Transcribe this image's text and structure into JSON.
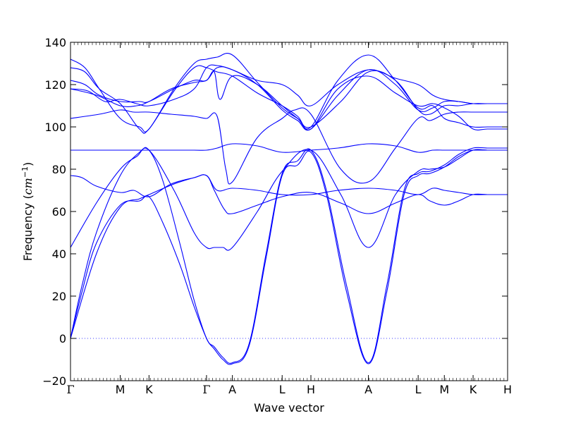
{
  "chart_data": {
    "type": "line",
    "title": "",
    "xlabel": "Wave vector",
    "ylabel": "Frequency ($cm^{-1}$)",
    "ylabel_parts": {
      "prefix": "Frequency (",
      "unit_base": "cm",
      "unit_exp": "−1",
      "suffix": ")"
    },
    "ylim": [
      -20,
      140
    ],
    "yticks": [
      -20,
      0,
      20,
      40,
      60,
      80,
      100,
      120,
      140
    ],
    "ytick_labels": [
      "−20",
      "0",
      "20",
      "40",
      "60",
      "80",
      "100",
      "120",
      "140"
    ],
    "xlim": [
      0,
      15.2
    ],
    "xticks": [
      {
        "label": "Γ",
        "x": 0.0
      },
      {
        "label": "M",
        "x": 1.73
      },
      {
        "label": "K",
        "x": 2.73
      },
      {
        "label": "Γ",
        "x": 4.73
      },
      {
        "label": "A",
        "x": 5.63
      },
      {
        "label": "L",
        "x": 7.36
      },
      {
        "label": "H",
        "x": 8.36
      },
      {
        "label": "A",
        "x": 10.36
      },
      {
        "label": "L",
        "x": 12.09
      },
      {
        "label": "M",
        "x": 13.0
      },
      {
        "label": "K",
        "x": 14.0
      },
      {
        "label": "H",
        "x": 15.2
      }
    ],
    "color": "#0000ff",
    "zero_line": {
      "y": 0,
      "style": "dotted"
    },
    "grid": false,
    "series": [
      {
        "x": [
          0,
          0.4,
          0.9,
          1.73,
          2.4,
          2.73,
          3.2,
          3.8,
          4.3,
          4.73,
          5.0,
          5.3,
          5.63,
          6.2,
          6.8,
          7.36,
          7.9,
          8.36,
          8.9,
          9.6,
          10.36,
          11.0,
          11.6,
          12.09,
          12.5,
          13.0,
          13.5,
          14.0,
          14.5,
          15.2
        ],
        "y": [
          0,
          25,
          50,
          77,
          88,
          89,
          75,
          45,
          18,
          0,
          -4,
          -9,
          -11.5,
          -3,
          40,
          78,
          84,
          89,
          70,
          25,
          -11.5,
          25,
          70,
          78,
          79,
          82,
          87,
          90,
          90,
          90
        ]
      },
      {
        "x": [
          0,
          0.4,
          0.9,
          1.73,
          2.4,
          2.73,
          3.2,
          3.8,
          4.3,
          4.73,
          5.0,
          5.3,
          5.63,
          6.2,
          6.8,
          7.36,
          7.9,
          8.36,
          8.9,
          9.6,
          10.36,
          11.0,
          11.6,
          12.09,
          12.5,
          13.0,
          13.5,
          14.0,
          14.5,
          15.2
        ],
        "y": [
          0,
          22,
          45,
          63,
          65,
          67,
          55,
          35,
          15,
          0,
          -5,
          -10,
          -12,
          -4,
          38,
          77,
          82,
          88,
          68,
          22,
          -12,
          22,
          68,
          77,
          78,
          81,
          86,
          89,
          89,
          89
        ]
      },
      {
        "x": [
          0,
          0.9,
          1.73,
          2.4,
          2.73,
          3.6,
          4.3,
          4.73,
          5.0,
          5.35,
          5.63,
          6.5,
          7.36,
          8.36,
          9.4,
          10.36,
          11.3,
          12.09,
          12.5,
          13.0,
          13.5,
          14.0,
          14.5,
          15.2
        ],
        "y": [
          0,
          40,
          62,
          66,
          68,
          73,
          76,
          77,
          70,
          61,
          59,
          63,
          67,
          69,
          64,
          59,
          64,
          68,
          65,
          63,
          65,
          68,
          68,
          68
        ]
      },
      {
        "x": [
          0,
          0.9,
          1.73,
          2.3,
          2.73,
          3.6,
          4.3,
          4.73,
          5.0,
          5.3,
          5.63,
          6.5,
          7.36,
          8.36,
          9.4,
          10.36,
          11.3,
          12.09,
          12.5,
          13.0,
          13.5,
          14.0,
          14.5,
          15.2
        ],
        "y": [
          43,
          64,
          80,
          86,
          89,
          70,
          50,
          43,
          43,
          43,
          43,
          60,
          79,
          89,
          68,
          43,
          68,
          79,
          80,
          81,
          85,
          89,
          89,
          89
        ]
      },
      {
        "x": [
          0,
          0.4,
          0.9,
          1.73,
          2.2,
          2.73,
          3.5,
          4.3,
          4.73,
          5.1,
          5.63,
          6.5,
          7.36,
          8.36,
          9.3,
          10.36,
          11.3,
          12.09,
          12.6,
          13.0,
          13.5,
          14.0,
          14.5,
          15.2
        ],
        "y": [
          77,
          76,
          72,
          69,
          70,
          67,
          73,
          76,
          77,
          70,
          71,
          70,
          68,
          68,
          70,
          71,
          70,
          68,
          71,
          70,
          69,
          68,
          68,
          68
        ]
      },
      {
        "x": [
          0,
          1.0,
          1.73,
          2.3,
          2.73,
          3.5,
          4.3,
          4.73,
          5.1,
          5.63,
          6.5,
          7.36,
          8.36,
          9.3,
          10.36,
          11.3,
          12.09,
          12.6,
          13.0,
          13.5,
          14.0,
          14.5,
          15.2
        ],
        "y": [
          89,
          89,
          89,
          89,
          89,
          89,
          89,
          89,
          90,
          92,
          91,
          88,
          89,
          90,
          92,
          91,
          88,
          89,
          89,
          89,
          89,
          89,
          89
        ]
      },
      {
        "x": [
          0,
          1.0,
          1.73,
          2.2,
          2.73,
          3.5,
          4.3,
          4.73,
          5.1,
          5.4,
          5.63,
          6.5,
          7.36,
          7.8,
          8.36,
          9.4,
          10.36,
          11.3,
          12.09,
          12.5,
          13.0,
          13.5,
          14.0,
          14.5,
          15.2
        ],
        "y": [
          104,
          106,
          108,
          107,
          107,
          106,
          105,
          104,
          105,
          80,
          74,
          95,
          104,
          108,
          106,
          80,
          74,
          90,
          104,
          103,
          106,
          107,
          107,
          107,
          107
        ]
      },
      {
        "x": [
          0,
          0.9,
          1.73,
          2.3,
          2.73,
          3.5,
          4.3,
          4.73,
          5.0,
          5.2,
          5.63,
          6.5,
          7.36,
          7.9,
          8.36,
          9.4,
          10.36,
          11.3,
          12.09,
          12.5,
          13.0,
          13.5,
          14.0,
          14.5,
          15.2
        ],
        "y": [
          118,
          115,
          110,
          110,
          112,
          118,
          121,
          122,
          126,
          113,
          124,
          120,
          110,
          104,
          100,
          112,
          126,
          122,
          108,
          106,
          110,
          110,
          111,
          111,
          111
        ]
      },
      {
        "x": [
          0,
          0.5,
          1.0,
          1.73,
          2.4,
          2.73,
          3.6,
          4.3,
          4.73,
          5.1,
          5.63,
          6.5,
          7.36,
          7.9,
          8.36,
          9.3,
          10.36,
          11.3,
          12.09,
          12.6,
          13.0,
          13.5,
          14.0,
          14.5,
          15.2
        ],
        "y": [
          122,
          120,
          115,
          112,
          112,
          112,
          118,
          122,
          122,
          128,
          127,
          120,
          108,
          103,
          99,
          115,
          127,
          120,
          108,
          109,
          112,
          112,
          111,
          111,
          111
        ]
      },
      {
        "x": [
          0,
          0.5,
          1.0,
          1.73,
          2.4,
          2.73,
          3.6,
          4.3,
          4.73,
          5.1,
          5.63,
          6.5,
          7.36,
          7.9,
          8.36,
          9.3,
          10.36,
          11.3,
          12.09,
          12.6,
          13.0,
          13.5,
          14.0,
          14.5,
          15.2
        ],
        "y": [
          128,
          126,
          118,
          111,
          99,
          99,
          117,
          128,
          128,
          126,
          124,
          116,
          110,
          105,
          99,
          118,
          124,
          116,
          110,
          111,
          109,
          105,
          99,
          99,
          99
        ]
      },
      {
        "x": [
          0,
          0.5,
          1.0,
          1.73,
          2.4,
          2.73,
          3.6,
          4.3,
          4.73,
          5.1,
          5.63,
          6.5,
          7.36,
          7.9,
          8.36,
          9.3,
          10.36,
          11.3,
          12.09,
          12.6,
          13.0,
          13.5,
          14.0,
          14.5,
          15.2
        ],
        "y": [
          132,
          128,
          118,
          104,
          100,
          99,
          118,
          130,
          132,
          133,
          134,
          121,
          109,
          104,
          100,
          122,
          134,
          122,
          109,
          110,
          104,
          102,
          100,
          100,
          100
        ]
      },
      {
        "x": [
          0,
          0.6,
          1.2,
          1.73,
          2.3,
          2.73,
          3.6,
          4.3,
          4.73,
          5.1,
          5.63,
          6.5,
          7.36,
          7.9,
          8.36,
          9.3,
          10.36,
          11.3,
          12.09,
          12.6,
          13.0,
          13.5,
          14.0,
          14.5,
          15.2
        ],
        "y": [
          118,
          117,
          112,
          113,
          111,
          110,
          113,
          118,
          128,
          129,
          127,
          122,
          120,
          115,
          110,
          120,
          127,
          123,
          120,
          115,
          113,
          112,
          111,
          111,
          111
        ]
      }
    ]
  }
}
